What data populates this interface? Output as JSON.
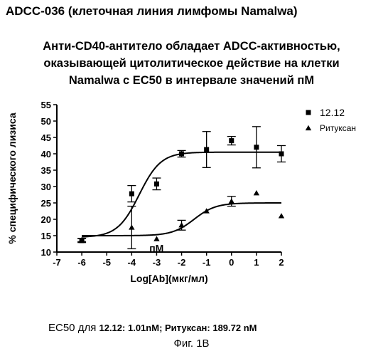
{
  "header": "ADCC-036 (клеточная линия лимфомы Namalwa)",
  "title_lines": [
    "Анти-CD40-антитело обладает ADCC-активностью,",
    "оказывающей цитолитическое действие на клетки",
    "Namalwa с EC50 в интервале значений пМ"
  ],
  "footer": {
    "ec50_prefix": "EC50 для ",
    "ec50_s1": "12.12:",
    "ec50_v1": " 1.01",
    "unit1": "nM",
    "sep": "; ",
    "ec50_s2": "Ритуксан:",
    "ec50_v2": " 189.72 ",
    "unit2": "nM",
    "figure": "Фиг. 1В"
  },
  "chart_data": {
    "type": "scatter",
    "xlabel": "Log[Ab](мкг/мл)",
    "ylabel": "% специфического лизиса",
    "xlim": [
      -7,
      2
    ],
    "ylim": [
      10,
      55
    ],
    "xticks": [
      -7,
      -6,
      -5,
      -4,
      -3,
      -2,
      -1,
      0,
      1,
      2
    ],
    "yticks": [
      10,
      15,
      20,
      25,
      30,
      35,
      40,
      45,
      50,
      55
    ],
    "annotation": {
      "text": "пМ",
      "x": -2.95,
      "y": 11.2
    },
    "legend_position": "top-right",
    "series": [
      {
        "name": "12.12",
        "marker": "square",
        "color": "#000000",
        "points": [
          {
            "x": -6,
            "y": 13.5,
            "err": 0.6
          },
          {
            "x": -4,
            "y": 27.8,
            "err": 2.5
          },
          {
            "x": -3,
            "y": 30.8,
            "err": 1.8
          },
          {
            "x": -2,
            "y": 40.0,
            "err": 1.0
          },
          {
            "x": -1,
            "y": 41.3,
            "err": 5.5
          },
          {
            "x": 0,
            "y": 44.0,
            "err": 1.3
          },
          {
            "x": 1,
            "y": 42.0,
            "err": 6.3
          },
          {
            "x": 2,
            "y": 40.0,
            "err": 2.5
          }
        ],
        "fit": {
          "bottom": 14.5,
          "top": 40.5,
          "logEC50": -3.7,
          "hill": 1.0
        }
      },
      {
        "name": "Ритуксан",
        "marker": "triangle",
        "color": "#000000",
        "points": [
          {
            "x": -6,
            "y": 13.7,
            "err": 0.5
          },
          {
            "x": -4,
            "y": 17.5,
            "err": 6.5
          },
          {
            "x": -3,
            "y": 14.0,
            "err": 0
          },
          {
            "x": -2,
            "y": 18.2,
            "err": 1.5
          },
          {
            "x": -1,
            "y": 22.5,
            "err": 0
          },
          {
            "x": 0,
            "y": 25.5,
            "err": 1.5
          },
          {
            "x": 1,
            "y": 28.0,
            "err": 0
          },
          {
            "x": 2,
            "y": 21.0,
            "err": 0
          }
        ],
        "fit": {
          "bottom": 15.0,
          "top": 25.0,
          "logEC50": -1.5,
          "hill": 1.0
        }
      }
    ]
  }
}
